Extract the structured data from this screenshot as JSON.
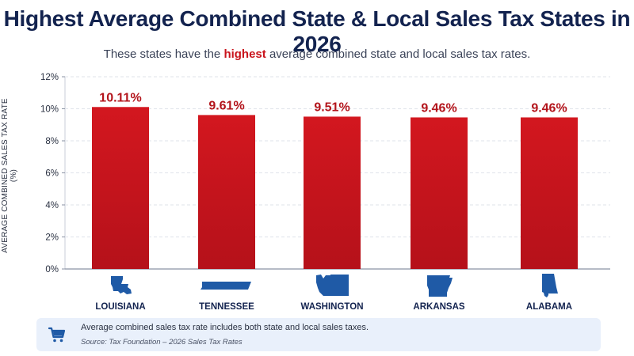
{
  "header": {
    "title": "Highest Average Combined State & Local Sales Tax States in 2026",
    "subtitle_before": "These states have the ",
    "subtitle_highlight": "highest",
    "subtitle_after": " average combined state and local sales tax rates."
  },
  "chart_data": {
    "type": "bar",
    "categories": [
      "LOUISIANA",
      "TENNESSEE",
      "WASHINGTON",
      "ARKANSAS",
      "ALABAMA"
    ],
    "values": [
      10.11,
      9.61,
      9.51,
      9.46,
      9.46
    ],
    "value_labels": [
      "10.11%",
      "9.61%",
      "9.51%",
      "9.46%",
      "9.46%"
    ],
    "ylabel": "AVERAGE COMBINED SALES TAX RATE (%)",
    "ylim": [
      0,
      12
    ],
    "yticks": [
      0,
      2,
      4,
      6,
      8,
      10,
      12
    ],
    "ytick_labels": [
      "0%",
      "2%",
      "4%",
      "6%",
      "8%",
      "10%",
      "12%"
    ],
    "grid": true,
    "bar_color": "#c9141c",
    "label_color": "#b3141b",
    "state_icon_color": "#1f5aa6",
    "state_icons": [
      "louisiana-icon",
      "tennessee-icon",
      "washington-icon",
      "arkansas-icon",
      "alabama-icon"
    ]
  },
  "footer": {
    "icon": "shopping-cart-icon",
    "note": "Average combined sales tax rate includes both state and local sales taxes.",
    "source": "Source: Tax Foundation – 2026 Sales Tax Rates"
  }
}
